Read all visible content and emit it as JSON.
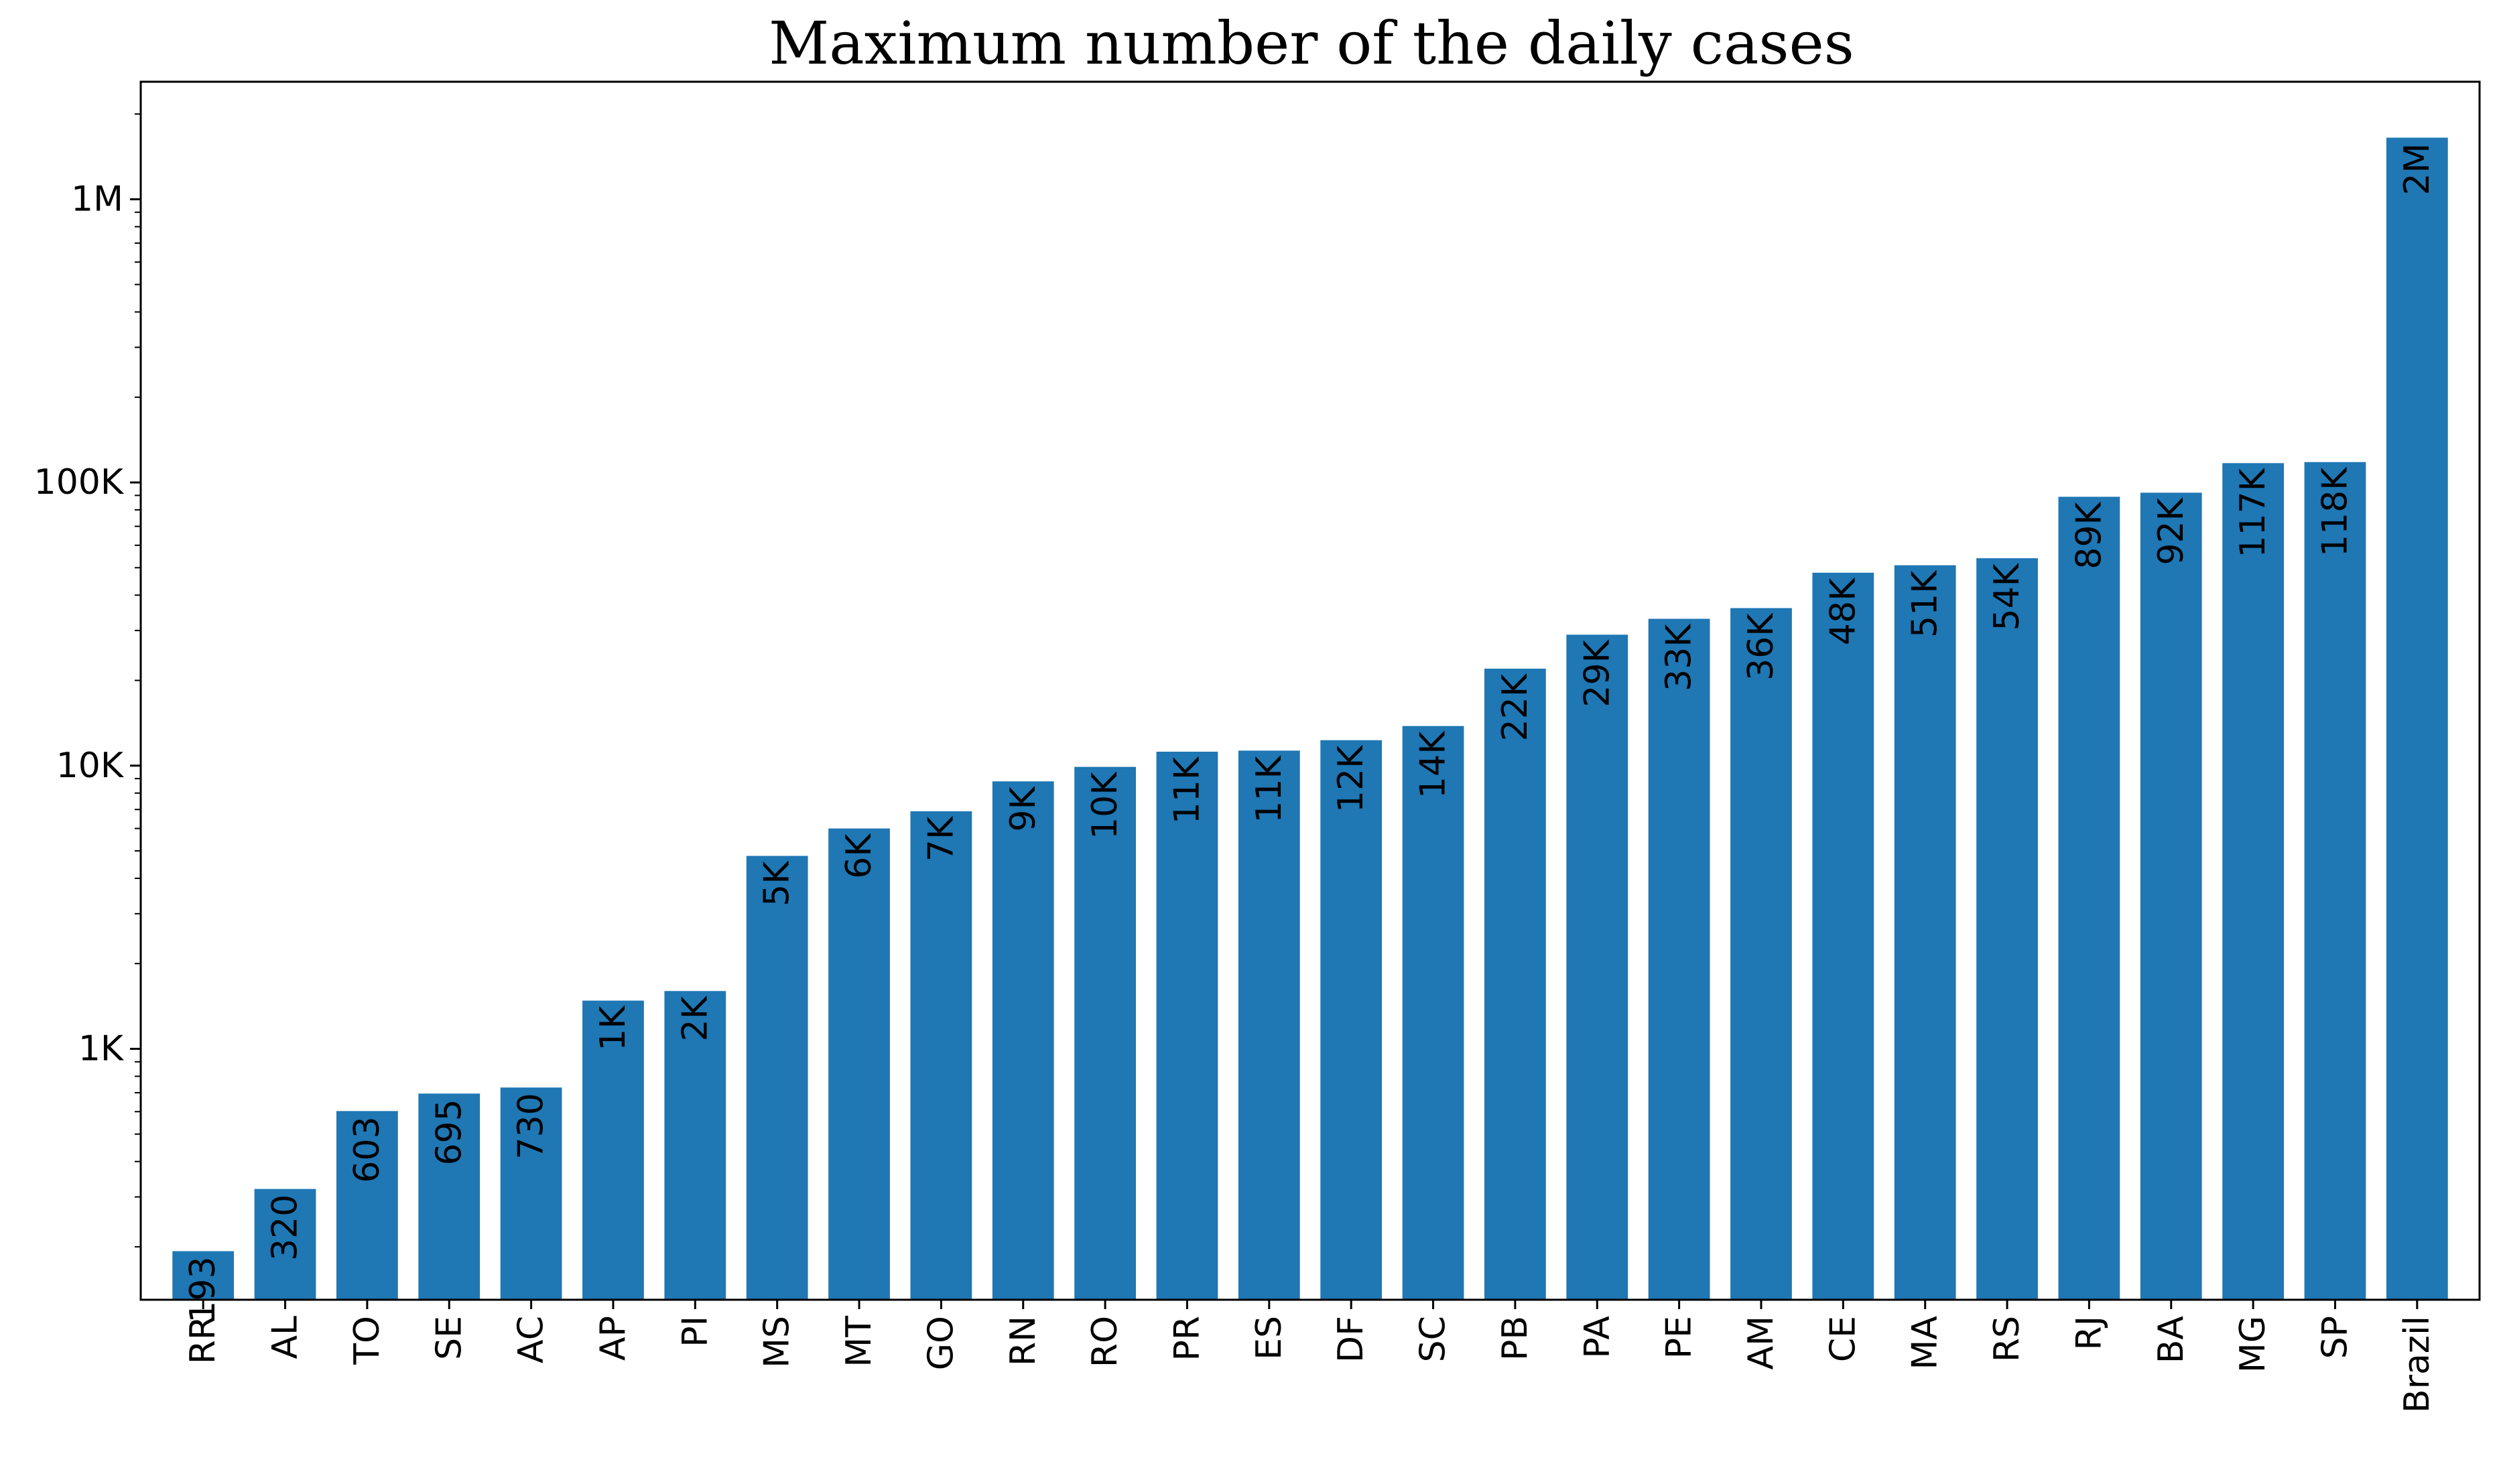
{
  "chart_data": {
    "type": "bar",
    "title": "Maximum number of the daily cases",
    "xlabel": "",
    "ylabel": "",
    "yscale": "log",
    "ylim": [
      130,
      2600000
    ],
    "y_ticks": [
      {
        "value": 1000,
        "label": "1K"
      },
      {
        "value": 10000,
        "label": "10K"
      },
      {
        "value": 100000,
        "label": "100K"
      },
      {
        "value": 1000000,
        "label": "1M"
      }
    ],
    "categories": [
      "RR",
      "AL",
      "TO",
      "SE",
      "AC",
      "AP",
      "PI",
      "MS",
      "MT",
      "GO",
      "RN",
      "RO",
      "PR",
      "ES",
      "DF",
      "SC",
      "PB",
      "PA",
      "PE",
      "AM",
      "CE",
      "MA",
      "RS",
      "RJ",
      "BA",
      "MG",
      "SP",
      "Brazil"
    ],
    "values": [
      193,
      320,
      603,
      695,
      730,
      1480,
      1600,
      4800,
      6000,
      6900,
      8800,
      9900,
      11200,
      11300,
      12300,
      13800,
      22000,
      29000,
      33000,
      36000,
      48000,
      51000,
      54000,
      89000,
      92000,
      117000,
      118000,
      1650000
    ],
    "data_labels": [
      "193",
      "320",
      "603",
      "695",
      "730",
      "1K",
      "2K",
      "5K",
      "6K",
      "7K",
      "9K",
      "10K",
      "11K",
      "11K",
      "12K",
      "14K",
      "22K",
      "29K",
      "33K",
      "36K",
      "48K",
      "51K",
      "54K",
      "89K",
      "92K",
      "117K",
      "118K",
      "2M"
    ],
    "bar_color": "#1f77b4",
    "grid": false,
    "legend": "none"
  }
}
